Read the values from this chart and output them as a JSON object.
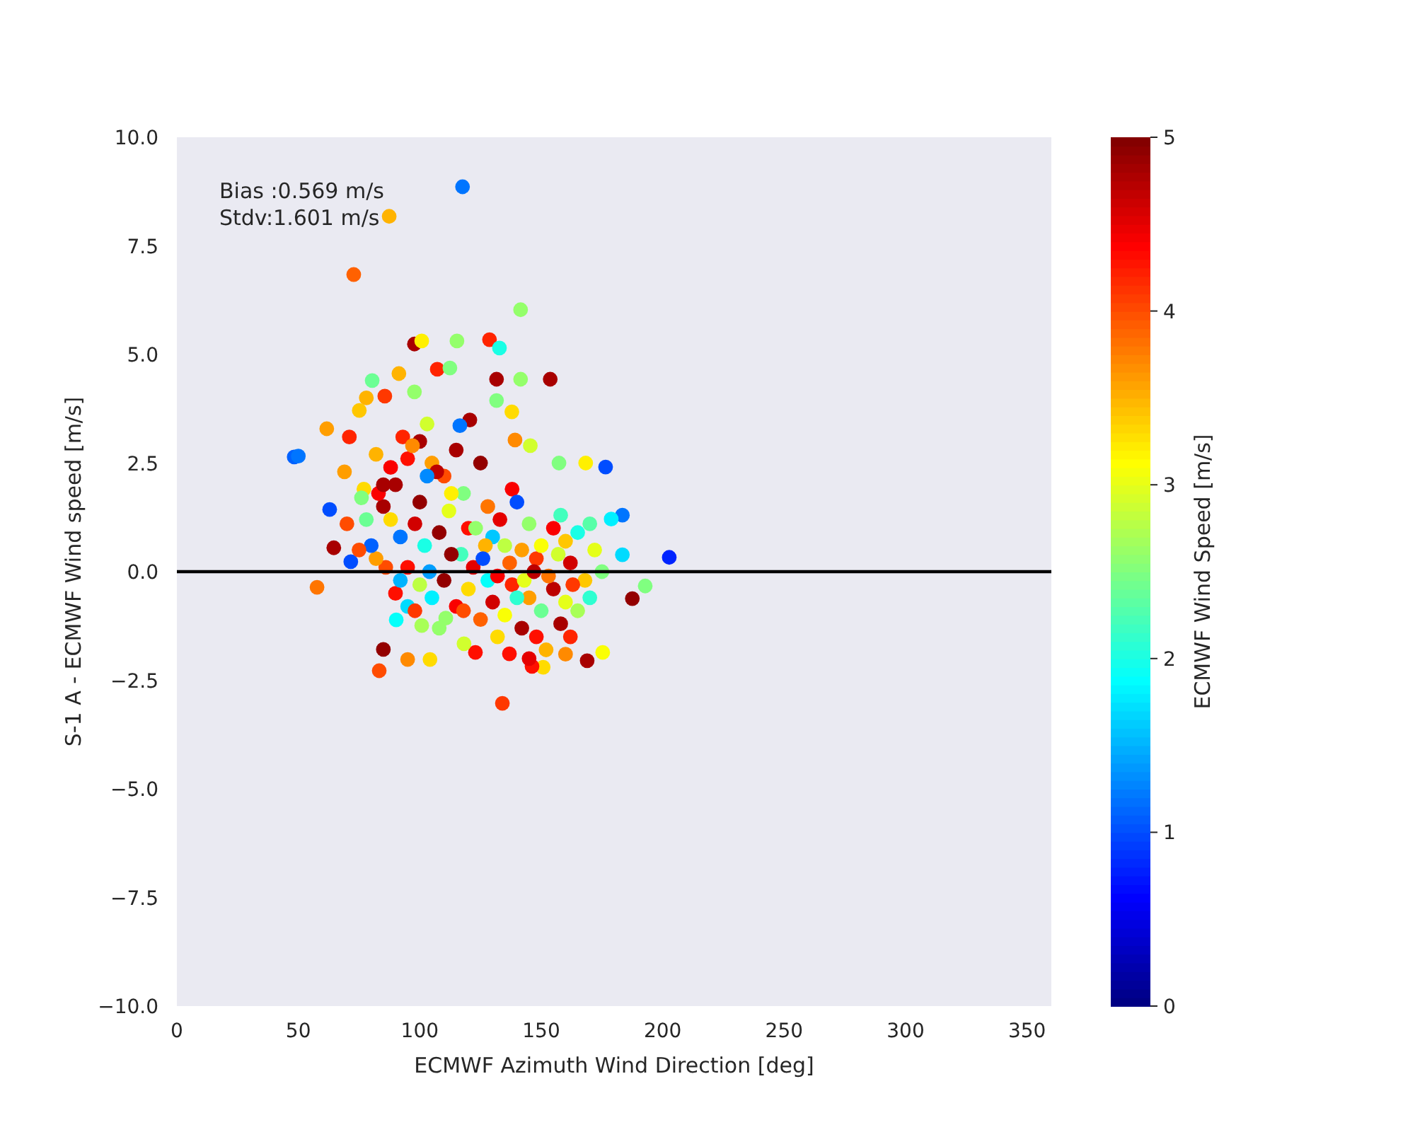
{
  "chart_data": {
    "type": "scatter",
    "xlabel": "ECMWF Azimuth Wind Direction [deg]",
    "ylabel": "S-1 A - ECMWF Wind speed [m/s]",
    "clabel": "ECMWF Wind Speed [m/s]",
    "annotations": [
      "Bias :0.569 m/s",
      "Stdv:1.601 m/s"
    ],
    "xlim": [
      0,
      360
    ],
    "xticks": [
      0,
      50,
      100,
      150,
      200,
      250,
      300,
      350
    ],
    "ylim": [
      -10,
      10
    ],
    "yticks": [
      {
        "value": -10,
        "label": "−10.0"
      },
      {
        "value": -7.5,
        "label": "−7.5"
      },
      {
        "value": -5,
        "label": "−5.0"
      },
      {
        "value": -2.5,
        "label": "−2.5"
      },
      {
        "value": 0,
        "label": "0.0"
      },
      {
        "value": 2.5,
        "label": "2.5"
      },
      {
        "value": 5,
        "label": "5.0"
      },
      {
        "value": 7.5,
        "label": "7.5"
      },
      {
        "value": 10,
        "label": "10.0"
      }
    ],
    "clim": [
      0,
      5
    ],
    "cticks": [
      0,
      1,
      2,
      3,
      4,
      5
    ],
    "grid": false,
    "marker": "circle",
    "ref_lines": [
      {
        "axis": "y",
        "value": 0,
        "color": "#000000"
      }
    ],
    "x": [
      117.6,
      87.4,
      72.8,
      141.5,
      48.3,
      50,
      61.7,
      62.9,
      64.6,
      57.7,
      71.6,
      202.7,
      192.8,
      187.5,
      183.4,
      183.4,
      178.8,
      175.3,
      168.9,
      150.8,
      134,
      146.2,
      136.9,
      122.9,
      118.2,
      104.2,
      83.3,
      85,
      90.3,
      100.8,
      95,
      110.7,
      97.8,
      100.8,
      115.3,
      128.7,
      132.8,
      131.6,
      141.5,
      153.7,
      107.2,
      112.4,
      85.6,
      80.4,
      91.4,
      97.8,
      78,
      75.1,
      131.6,
      137.9,
      145.5,
      139.2,
      120.6,
      116.5,
      157.3,
      168.3,
      176.5,
      90,
      95,
      100,
      105,
      110,
      85,
      88,
      92,
      98,
      102,
      108,
      112,
      115,
      118,
      120,
      125,
      128,
      130,
      133,
      138,
      140,
      142,
      145,
      148,
      150,
      155,
      158,
      160,
      162,
      165,
      170,
      172,
      175,
      90,
      95,
      100,
      105,
      110,
      115,
      120,
      125,
      130,
      135,
      138,
      142,
      145,
      148,
      150,
      152,
      155,
      158,
      160,
      162,
      165,
      168,
      170,
      160,
      145,
      132,
      128,
      118,
      108,
      98,
      92,
      86,
      82,
      88,
      93,
      97,
      103,
      107,
      113,
      117,
      122,
      127,
      132,
      137,
      143,
      147,
      153,
      157,
      163,
      78,
      80,
      83,
      77,
      75,
      70,
      69,
      71,
      76,
      82,
      85,
      100,
      104,
      135,
      140,
      123,
      113,
      103,
      126,
      95
    ],
    "values": [
      8.86,
      8.18,
      6.84,
      6.03,
      2.64,
      2.66,
      3.29,
      1.43,
      0.55,
      -0.36,
      0.23,
      0.33,
      -0.33,
      -0.62,
      0.39,
      1.3,
      1.21,
      -1.86,
      -2.05,
      -2.2,
      -3.03,
      -2.18,
      -1.89,
      -1.86,
      -1.66,
      -2.02,
      -2.28,
      -1.79,
      -1.11,
      -1.24,
      -2.02,
      -1.07,
      5.24,
      5.31,
      5.31,
      5.34,
      5.15,
      4.43,
      4.43,
      4.43,
      4.66,
      4.69,
      4.04,
      4.4,
      4.56,
      4.14,
      4,
      3.71,
      3.94,
      3.68,
      2.9,
      3.03,
      3.49,
      3.36,
      2.5,
      2.5,
      2.41,
      2,
      2.6,
      3,
      2.5,
      2.2,
      1.5,
      1.2,
      0.8,
      1.1,
      0.6,
      0.9,
      1.4,
      2.8,
      1.8,
      1,
      2.5,
      1.5,
      0.8,
      1.2,
      1.9,
      1.6,
      0.5,
      1.1,
      0.3,
      0.6,
      1,
      1.3,
      0.7,
      0.2,
      0.9,
      1.1,
      0.5,
      0,
      -0.5,
      -0.8,
      -0.3,
      -0.6,
      -0.2,
      -0.8,
      -0.4,
      -1.1,
      -0.7,
      -1,
      -0.3,
      -1.3,
      -0.6,
      -1.5,
      -0.9,
      -1.8,
      -0.4,
      -1.2,
      -0.7,
      -1.5,
      -0.9,
      -0.2,
      -0.6,
      -1.9,
      -2,
      -1.5,
      -0.2,
      -0.9,
      -1.3,
      -0.9,
      -0.2,
      0.1,
      0.3,
      2.4,
      3.1,
      2.9,
      3.4,
      2.3,
      1.8,
      0.4,
      0.1,
      0.6,
      -0.1,
      0.2,
      -0.2,
      0,
      -0.1,
      0.4,
      -0.3,
      1.2,
      0.6,
      1.8,
      1.9,
      0.5,
      1.1,
      2.3,
      3.1,
      1.7,
      2.7,
      2,
      1.6,
      0,
      0.6,
      -0.6,
      1,
      0.4,
      2.2,
      0.3,
      0.1
    ],
    "cvalues": [
      1.2,
      3.5,
      3.9,
      2.6,
      1.1,
      1.2,
      3.6,
      1,
      4.8,
      3.8,
      1,
      0.8,
      2.5,
      4.9,
      1.7,
      1.2,
      1.8,
      3.1,
      4.8,
      3.3,
      4.1,
      4.3,
      4.3,
      4.3,
      2.9,
      3.3,
      4,
      4.9,
      1.9,
      2.7,
      3.7,
      2.6,
      4.8,
      3.2,
      2.6,
      4.2,
      2,
      4.8,
      2.6,
      4.8,
      4.2,
      2.5,
      4.1,
      2.4,
      3.5,
      2.6,
      3.5,
      3.4,
      2.5,
      3.3,
      2.9,
      3.7,
      4.8,
      1.2,
      2.5,
      3.2,
      1,
      4.8,
      4.3,
      4.8,
      3.6,
      4,
      4.8,
      3.3,
      1.2,
      4.6,
      2,
      4.9,
      3,
      4.8,
      2.5,
      4.3,
      4.9,
      3.8,
      1.6,
      4.5,
      4.4,
      1,
      3.6,
      2.6,
      4.1,
      3.1,
      4.4,
      2.2,
      3.4,
      4.6,
      2,
      2.3,
      3,
      2.5,
      4.3,
      1.7,
      2.8,
      1.8,
      4.9,
      4.4,
      3.3,
      3.9,
      4.6,
      3.1,
      4.2,
      4.8,
      3.6,
      4.3,
      2.4,
      3.5,
      4.7,
      4.8,
      3,
      4.2,
      2.7,
      3.4,
      2.1,
      3.7,
      4.5,
      3.3,
      1.9,
      4,
      2.6,
      4.1,
      1.5,
      4,
      3.6,
      4.4,
      4.2,
      3.7,
      2.9,
      4.7,
      3.2,
      2.2,
      4.5,
      3.5,
      4.4,
      3.9,
      3,
      4.7,
      3.8,
      2.9,
      4.1,
      2.4,
      1.1,
      4.4,
      3.3,
      4,
      4,
      3.6,
      4.2,
      2.5,
      3.5,
      4.8,
      4.9,
      1.4,
      2.8,
      2.1,
      2.6,
      4.9,
      1.3,
      1,
      4.3
    ]
  }
}
